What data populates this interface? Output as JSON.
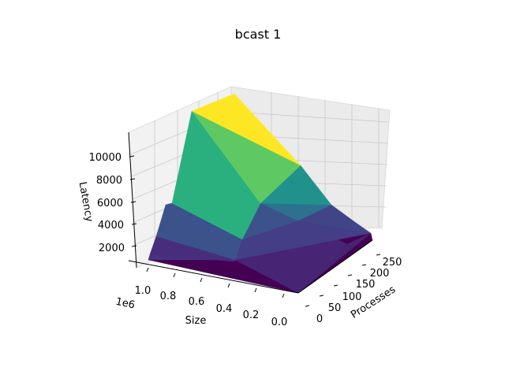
{
  "chart_data": {
    "type": "surface3d",
    "title": "bcast 1",
    "xlabel": "Size",
    "ylabel": "Processes",
    "zlabel": "Latency",
    "x_offset_label": "1e6",
    "x_ticks": [
      "1.0",
      "0.8",
      "0.6",
      "0.4",
      "0.2",
      "0.0"
    ],
    "y_ticks": [
      "0",
      "50",
      "100",
      "150",
      "200",
      "250"
    ],
    "z_ticks": [
      "2000",
      "4000",
      "6000",
      "8000",
      "10000"
    ],
    "xlim": [
      0,
      1100000
    ],
    "ylim": [
      0,
      270
    ],
    "zlim": [
      0,
      11500
    ],
    "colormap": "viridis",
    "colors": {
      "yellow": "#fde725",
      "light_green": "#5ec962",
      "green": "#2ab07f",
      "teal": "#21918c",
      "blue_teal": "#2c728e",
      "blue": "#3b528b",
      "indigo": "#472d7b",
      "purple": "#440154",
      "grid": "#b0b0b0",
      "pane": "#f2f2f2"
    },
    "surface_estimates": [
      {
        "size": 1048576,
        "processes": 256,
        "latency": 11000
      },
      {
        "size": 1048576,
        "processes": 128,
        "latency": 10500
      },
      {
        "size": 1048576,
        "processes": 64,
        "latency": 7000
      },
      {
        "size": 1048576,
        "processes": 32,
        "latency": 3500
      },
      {
        "size": 1048576,
        "processes": 16,
        "latency": 1500
      },
      {
        "size": 524288,
        "processes": 256,
        "latency": 6000
      },
      {
        "size": 524288,
        "processes": 128,
        "latency": 4500
      },
      {
        "size": 524288,
        "processes": 64,
        "latency": 2500
      },
      {
        "size": 262144,
        "processes": 256,
        "latency": 3000
      },
      {
        "size": 262144,
        "processes": 128,
        "latency": 2000
      },
      {
        "size": 65536,
        "processes": 256,
        "latency": 800
      },
      {
        "size": 0,
        "processes": 0,
        "latency": 50
      }
    ]
  }
}
